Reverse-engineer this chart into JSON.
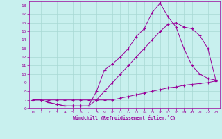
{
  "xlabel": "Windchill (Refroidissement éolien,°C)",
  "bg_color": "#c8f0ee",
  "grid_color": "#a8d8d4",
  "line_color": "#990099",
  "xlim": [
    -0.5,
    23.5
  ],
  "ylim": [
    6,
    18.5
  ],
  "xticks": [
    0,
    1,
    2,
    3,
    4,
    5,
    6,
    7,
    8,
    9,
    10,
    11,
    12,
    13,
    14,
    15,
    16,
    17,
    18,
    19,
    20,
    21,
    22,
    23
  ],
  "yticks": [
    6,
    7,
    8,
    9,
    10,
    11,
    12,
    13,
    14,
    15,
    16,
    17,
    18
  ],
  "series1_x": [
    0,
    1,
    2,
    3,
    4,
    5,
    6,
    7,
    8,
    9,
    10,
    11,
    12,
    13,
    14,
    15,
    16,
    17,
    18,
    19,
    20,
    21,
    22,
    23
  ],
  "series1_y": [
    7.0,
    7.0,
    6.7,
    6.5,
    6.3,
    6.3,
    6.3,
    6.3,
    8.0,
    10.5,
    11.2,
    12.0,
    13.0,
    14.4,
    15.3,
    17.2,
    18.3,
    16.7,
    15.5,
    13.0,
    11.0,
    10.0,
    9.5,
    9.3
  ],
  "series2_x": [
    0,
    1,
    2,
    3,
    4,
    5,
    6,
    7,
    8,
    9,
    10,
    11,
    12,
    13,
    14,
    15,
    16,
    17,
    18,
    19,
    20,
    21,
    22,
    23
  ],
  "series2_y": [
    7.0,
    7.0,
    6.7,
    6.5,
    6.3,
    6.3,
    6.3,
    6.3,
    7.0,
    8.0,
    9.0,
    10.0,
    11.0,
    12.0,
    13.0,
    14.0,
    15.0,
    15.8,
    16.0,
    15.5,
    15.3,
    14.5,
    13.0,
    9.3
  ],
  "series3_x": [
    0,
    1,
    2,
    3,
    4,
    5,
    6,
    7,
    8,
    9,
    10,
    11,
    12,
    13,
    14,
    15,
    16,
    17,
    18,
    19,
    20,
    21,
    22,
    23
  ],
  "series3_y": [
    7.0,
    7.0,
    7.0,
    7.0,
    7.0,
    7.0,
    7.0,
    7.0,
    7.0,
    7.0,
    7.0,
    7.2,
    7.4,
    7.6,
    7.8,
    8.0,
    8.2,
    8.4,
    8.5,
    8.7,
    8.8,
    8.9,
    9.0,
    9.2
  ]
}
